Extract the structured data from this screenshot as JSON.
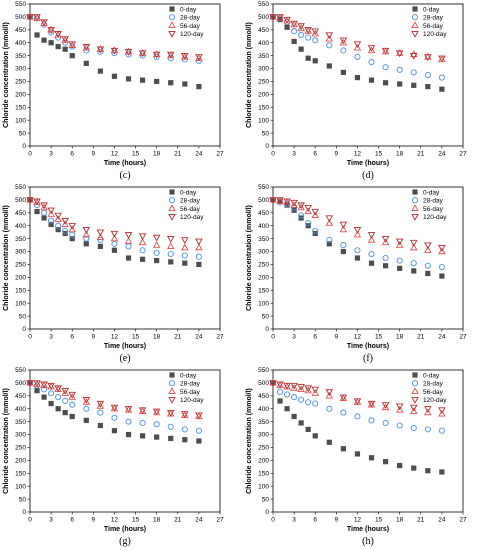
{
  "figure": {
    "labels": [
      "(c)",
      "(d)",
      "(e)",
      "(f)",
      "(g)",
      "(h)"
    ]
  },
  "colors": {
    "0-day": "#4d4d4d",
    "28-day": "#4a90e2",
    "56-day": "#e05050",
    "120-day": "#b03030"
  },
  "markers": {
    "0-day": "filled-square",
    "28-day": "open-circle",
    "56-day": "open-triangle-up",
    "120-day": "open-triangle-down"
  },
  "chart_data": [
    {
      "type": "scatter",
      "label": "(c)",
      "xlabel": "Time (hours)",
      "ylabel": "Chloride concentration (mmol/l)",
      "xlim": [
        0,
        27
      ],
      "ylim": [
        0,
        550
      ],
      "xticks": [
        0,
        3,
        6,
        9,
        12,
        15,
        18,
        21,
        24,
        27
      ],
      "yticks": [
        0,
        50,
        100,
        150,
        200,
        250,
        300,
        350,
        400,
        450,
        500,
        550
      ],
      "legend_position": "top-right",
      "x": [
        0,
        1,
        2,
        3,
        4,
        5,
        6,
        8,
        10,
        12,
        14,
        16,
        18,
        20,
        22,
        24
      ],
      "series": [
        {
          "name": "0-day",
          "values": [
            500,
            430,
            410,
            400,
            385,
            375,
            350,
            320,
            290,
            270,
            260,
            255,
            250,
            245,
            240,
            230
          ]
        },
        {
          "name": "28-day",
          "values": [
            500,
            495,
            470,
            440,
            420,
            400,
            385,
            370,
            365,
            360,
            355,
            350,
            345,
            340,
            335,
            330
          ]
        },
        {
          "name": "56-day",
          "values": [
            500,
            495,
            475,
            450,
            430,
            410,
            390,
            380,
            375,
            370,
            365,
            360,
            355,
            350,
            345,
            340
          ]
        },
        {
          "name": "120-day",
          "values": [
            500,
            500,
            480,
            450,
            435,
            415,
            395,
            385,
            375,
            370,
            365,
            360,
            355,
            355,
            350,
            345
          ]
        }
      ]
    },
    {
      "type": "scatter",
      "label": "(d)",
      "xlabel": "Time (hours)",
      "ylabel": "Chloride concentration (mmol/l)",
      "xlim": [
        0,
        27
      ],
      "ylim": [
        0,
        550
      ],
      "xticks": [
        0,
        3,
        6,
        9,
        12,
        15,
        18,
        21,
        24,
        27
      ],
      "yticks": [
        0,
        50,
        100,
        150,
        200,
        250,
        300,
        350,
        400,
        450,
        500,
        550
      ],
      "legend_position": "top-right",
      "x": [
        0,
        1,
        2,
        3,
        4,
        5,
        6,
        8,
        10,
        12,
        14,
        16,
        18,
        20,
        22,
        24
      ],
      "series": [
        {
          "name": "0-day",
          "values": [
            500,
            490,
            460,
            405,
            375,
            340,
            330,
            310,
            285,
            265,
            255,
            245,
            240,
            235,
            230,
            220
          ]
        },
        {
          "name": "28-day",
          "values": [
            500,
            495,
            480,
            445,
            430,
            420,
            410,
            390,
            370,
            345,
            325,
            305,
            295,
            285,
            275,
            265
          ]
        },
        {
          "name": "56-day",
          "values": [
            500,
            495,
            485,
            470,
            455,
            445,
            435,
            415,
            400,
            380,
            370,
            365,
            360,
            355,
            345,
            335
          ]
        },
        {
          "name": "120-day",
          "values": [
            500,
            500,
            490,
            475,
            465,
            450,
            445,
            430,
            410,
            395,
            380,
            370,
            360,
            350,
            345,
            340
          ]
        }
      ]
    },
    {
      "type": "scatter",
      "label": "(e)",
      "xlabel": "Time (hours)",
      "ylabel": "Chloride concentration (mmol/l)",
      "xlim": [
        0,
        27
      ],
      "ylim": [
        0,
        550
      ],
      "xticks": [
        0,
        3,
        6,
        9,
        12,
        15,
        18,
        21,
        24,
        27
      ],
      "yticks": [
        0,
        50,
        100,
        150,
        200,
        250,
        300,
        350,
        400,
        450,
        500,
        550
      ],
      "legend_position": "top-right",
      "x": [
        0,
        1,
        2,
        3,
        4,
        5,
        6,
        8,
        10,
        12,
        14,
        16,
        18,
        20,
        22,
        24
      ],
      "series": [
        {
          "name": "0-day",
          "values": [
            500,
            455,
            430,
            405,
            385,
            370,
            350,
            330,
            320,
            305,
            275,
            270,
            265,
            260,
            255,
            250
          ]
        },
        {
          "name": "28-day",
          "values": [
            500,
            480,
            450,
            420,
            400,
            380,
            365,
            350,
            345,
            330,
            320,
            305,
            295,
            290,
            285,
            280
          ]
        },
        {
          "name": "56-day",
          "values": [
            500,
            490,
            470,
            445,
            425,
            405,
            385,
            365,
            355,
            350,
            340,
            335,
            325,
            320,
            315,
            315
          ]
        },
        {
          "name": "120-day",
          "values": [
            500,
            495,
            480,
            460,
            440,
            420,
            400,
            385,
            375,
            370,
            365,
            360,
            355,
            350,
            345,
            340
          ]
        }
      ]
    },
    {
      "type": "scatter",
      "label": "(f)",
      "xlabel": "Time (hours)",
      "ylabel": "Chloride concentration (mmol/l)",
      "xlim": [
        0,
        27
      ],
      "ylim": [
        0,
        550
      ],
      "xticks": [
        0,
        3,
        6,
        9,
        12,
        15,
        18,
        21,
        24,
        27
      ],
      "yticks": [
        0,
        50,
        100,
        150,
        200,
        250,
        300,
        350,
        400,
        450,
        500,
        550
      ],
      "legend_position": "top-right",
      "x": [
        0,
        1,
        2,
        3,
        4,
        5,
        6,
        8,
        10,
        12,
        14,
        16,
        18,
        20,
        22,
        24
      ],
      "series": [
        {
          "name": "0-day",
          "values": [
            500,
            495,
            480,
            460,
            430,
            400,
            370,
            330,
            300,
            275,
            255,
            245,
            235,
            225,
            215,
            205
          ]
        },
        {
          "name": "28-day",
          "values": [
            500,
            490,
            485,
            470,
            440,
            410,
            380,
            345,
            325,
            305,
            290,
            275,
            265,
            255,
            245,
            240
          ]
        },
        {
          "name": "56-day",
          "values": [
            500,
            495,
            490,
            480,
            470,
            455,
            440,
            410,
            385,
            365,
            345,
            335,
            325,
            315,
            305,
            300
          ]
        },
        {
          "name": "120-day",
          "values": [
            500,
            500,
            495,
            490,
            480,
            470,
            455,
            430,
            405,
            385,
            365,
            350,
            340,
            335,
            325,
            315
          ]
        }
      ]
    },
    {
      "type": "scatter",
      "label": "(g)",
      "xlabel": "Time (hours)",
      "ylabel": "Chloride concentration (mmol/l)",
      "xlim": [
        0,
        27
      ],
      "ylim": [
        0,
        550
      ],
      "xticks": [
        0,
        3,
        6,
        9,
        12,
        15,
        18,
        21,
        24,
        27
      ],
      "yticks": [
        0,
        50,
        100,
        150,
        200,
        250,
        300,
        350,
        400,
        450,
        500,
        550
      ],
      "legend_position": "top-right",
      "x": [
        0,
        1,
        2,
        3,
        4,
        5,
        6,
        8,
        10,
        12,
        14,
        16,
        18,
        20,
        22,
        24
      ],
      "series": [
        {
          "name": "0-day",
          "values": [
            500,
            470,
            445,
            420,
            400,
            385,
            370,
            355,
            335,
            315,
            300,
            295,
            290,
            285,
            280,
            275
          ]
        },
        {
          "name": "28-day",
          "values": [
            500,
            490,
            475,
            460,
            445,
            430,
            415,
            400,
            385,
            365,
            350,
            345,
            340,
            330,
            320,
            315
          ]
        },
        {
          "name": "56-day",
          "values": [
            500,
            495,
            490,
            485,
            475,
            460,
            445,
            425,
            410,
            400,
            395,
            390,
            385,
            380,
            375,
            370
          ]
        },
        {
          "name": "120-day",
          "values": [
            500,
            500,
            495,
            490,
            480,
            470,
            455,
            435,
            420,
            405,
            400,
            395,
            390,
            385,
            380,
            375
          ]
        }
      ]
    },
    {
      "type": "scatter",
      "label": "(h)",
      "xlabel": "Time (hours)",
      "ylabel": "Chloride concentration (mmol/l)",
      "xlim": [
        0,
        27
      ],
      "ylim": [
        0,
        550
      ],
      "xticks": [
        0,
        3,
        6,
        9,
        12,
        15,
        18,
        21,
        24,
        27
      ],
      "yticks": [
        0,
        50,
        100,
        150,
        200,
        250,
        300,
        350,
        400,
        450,
        500,
        550
      ],
      "legend_position": "top-right",
      "x": [
        0,
        1,
        2,
        3,
        4,
        5,
        6,
        8,
        10,
        12,
        14,
        16,
        18,
        20,
        22,
        24
      ],
      "series": [
        {
          "name": "0-day",
          "values": [
            500,
            430,
            400,
            370,
            345,
            320,
            295,
            270,
            245,
            225,
            210,
            195,
            180,
            170,
            160,
            155
          ]
        },
        {
          "name": "28-day",
          "values": [
            500,
            465,
            455,
            445,
            435,
            425,
            420,
            400,
            385,
            370,
            355,
            345,
            335,
            325,
            320,
            315
          ]
        },
        {
          "name": "56-day",
          "values": [
            500,
            490,
            485,
            480,
            475,
            470,
            460,
            450,
            440,
            425,
            415,
            405,
            395,
            390,
            385,
            380
          ]
        },
        {
          "name": "120-day",
          "values": [
            500,
            495,
            490,
            490,
            485,
            480,
            475,
            465,
            445,
            430,
            420,
            415,
            410,
            405,
            400,
            395
          ]
        }
      ]
    }
  ]
}
